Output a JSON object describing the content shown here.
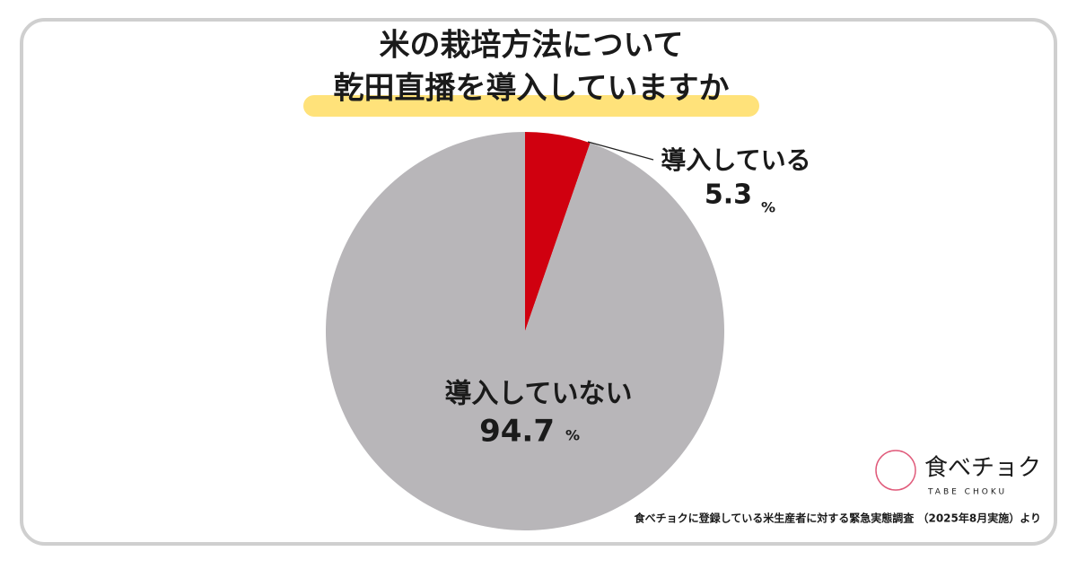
{
  "chart_data": {
    "type": "pie",
    "title_lines": [
      "米の栽培方法について",
      "乾田直播を導入していますか"
    ],
    "categories": [
      "導入している",
      "導入していない"
    ],
    "values": [
      5.3,
      94.7
    ],
    "colors": [
      "#d0000f",
      "#b8b6b9"
    ],
    "unit": "%",
    "source": "食べチョクに登録している米生産者に対する緊急実態調査 （2025年8月実施）より"
  },
  "logo": {
    "text": "食べチョク",
    "subtext": "TABE CHOKU"
  }
}
